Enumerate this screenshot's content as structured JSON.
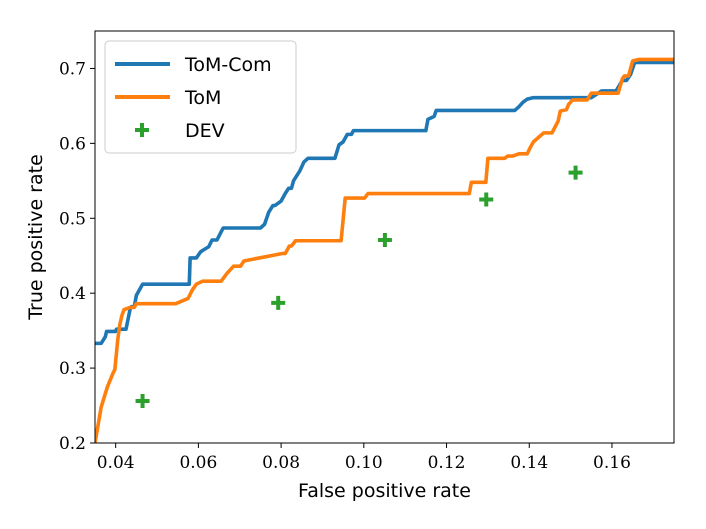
{
  "chart_data": {
    "type": "line",
    "xlabel": "False positive rate",
    "ylabel": "True positive rate",
    "xlim": [
      0.035,
      0.175
    ],
    "ylim": [
      0.2,
      0.75
    ],
    "x_ticks": [
      0.04,
      0.06,
      0.08,
      0.1,
      0.12,
      0.14,
      0.16
    ],
    "x_tick_labels": [
      "0.04",
      "0.06",
      "0.08",
      "0.10",
      "0.12",
      "0.14",
      "0.16"
    ],
    "y_ticks": [
      0.2,
      0.3,
      0.4,
      0.5,
      0.6,
      0.7
    ],
    "y_tick_labels": [
      "0.2",
      "0.3",
      "0.4",
      "0.5",
      "0.6",
      "0.7"
    ],
    "legend_position": "top-left",
    "series": [
      {
        "name": "ToM-Com",
        "kind": "line",
        "color": "#1f77b4",
        "x": [
          0.035,
          0.0365,
          0.0375,
          0.0378,
          0.04,
          0.0402,
          0.0425,
          0.0435,
          0.0438,
          0.0445,
          0.045,
          0.046,
          0.0465,
          0.05,
          0.055,
          0.0578,
          0.058,
          0.0595,
          0.0605,
          0.061,
          0.0625,
          0.0633,
          0.0645,
          0.0655,
          0.066,
          0.067,
          0.075,
          0.076,
          0.077,
          0.078,
          0.0785,
          0.08,
          0.081,
          0.0818,
          0.0825,
          0.083,
          0.0838,
          0.0845,
          0.0855,
          0.0865,
          0.0875,
          0.093,
          0.094,
          0.095,
          0.096,
          0.097,
          0.0975,
          0.0995,
          0.1002,
          0.101,
          0.115,
          0.1155,
          0.117,
          0.1175,
          0.1195,
          0.1365,
          0.1375,
          0.1385,
          0.1395,
          0.141,
          0.155,
          0.1575,
          0.161,
          0.1625,
          0.1635,
          0.1645,
          0.1655,
          0.175
        ],
        "y": [
          0.333,
          0.333,
          0.342,
          0.349,
          0.349,
          0.352,
          0.352,
          0.379,
          0.382,
          0.382,
          0.397,
          0.407,
          0.412,
          0.412,
          0.412,
          0.412,
          0.447,
          0.447,
          0.455,
          0.457,
          0.462,
          0.471,
          0.471,
          0.482,
          0.487,
          0.487,
          0.487,
          0.492,
          0.508,
          0.517,
          0.517,
          0.523,
          0.533,
          0.54,
          0.54,
          0.55,
          0.557,
          0.563,
          0.575,
          0.58,
          0.58,
          0.58,
          0.598,
          0.602,
          0.612,
          0.612,
          0.617,
          0.617,
          0.617,
          0.617,
          0.617,
          0.632,
          0.636,
          0.644,
          0.644,
          0.644,
          0.649,
          0.655,
          0.659,
          0.661,
          0.661,
          0.67,
          0.67,
          0.684,
          0.684,
          0.692,
          0.708,
          0.708
        ]
      },
      {
        "name": "ToM",
        "kind": "line",
        "color": "#ff7f0e",
        "x": [
          0.035,
          0.0365,
          0.038,
          0.0395,
          0.0398,
          0.0405,
          0.041,
          0.0415,
          0.042,
          0.0435,
          0.0445,
          0.045,
          0.0465,
          0.0545,
          0.0575,
          0.0585,
          0.0595,
          0.061,
          0.0648,
          0.0655,
          0.067,
          0.0685,
          0.0702,
          0.071,
          0.0803,
          0.081,
          0.082,
          0.0825,
          0.0835,
          0.0945,
          0.0955,
          0.1002,
          0.101,
          0.1255,
          0.126,
          0.1295,
          0.13,
          0.134,
          0.1348,
          0.136,
          0.1375,
          0.1395,
          0.1402,
          0.141,
          0.1435,
          0.1445,
          0.1455,
          0.147,
          0.1475,
          0.149,
          0.1495,
          0.1505,
          0.154,
          0.155,
          0.1615,
          0.1625,
          0.163,
          0.164,
          0.165,
          0.1665,
          0.175
        ],
        "y": [
          0.2,
          0.248,
          0.275,
          0.295,
          0.298,
          0.338,
          0.358,
          0.37,
          0.378,
          0.381,
          0.381,
          0.386,
          0.386,
          0.386,
          0.393,
          0.404,
          0.412,
          0.416,
          0.416,
          0.416,
          0.427,
          0.436,
          0.436,
          0.443,
          0.453,
          0.453,
          0.463,
          0.463,
          0.47,
          0.47,
          0.527,
          0.527,
          0.533,
          0.533,
          0.548,
          0.548,
          0.58,
          0.58,
          0.583,
          0.583,
          0.586,
          0.586,
          0.594,
          0.602,
          0.614,
          0.614,
          0.614,
          0.63,
          0.643,
          0.645,
          0.652,
          0.658,
          0.658,
          0.667,
          0.667,
          0.686,
          0.69,
          0.69,
          0.71,
          0.712,
          0.712
        ]
      },
      {
        "name": "DEV",
        "kind": "scatter",
        "marker": "plus",
        "color": "#2ca02c",
        "x": [
          0.0465,
          0.0793,
          0.1051,
          0.1296,
          0.1512
        ],
        "y": [
          0.256,
          0.387,
          0.471,
          0.525,
          0.561
        ]
      }
    ]
  }
}
